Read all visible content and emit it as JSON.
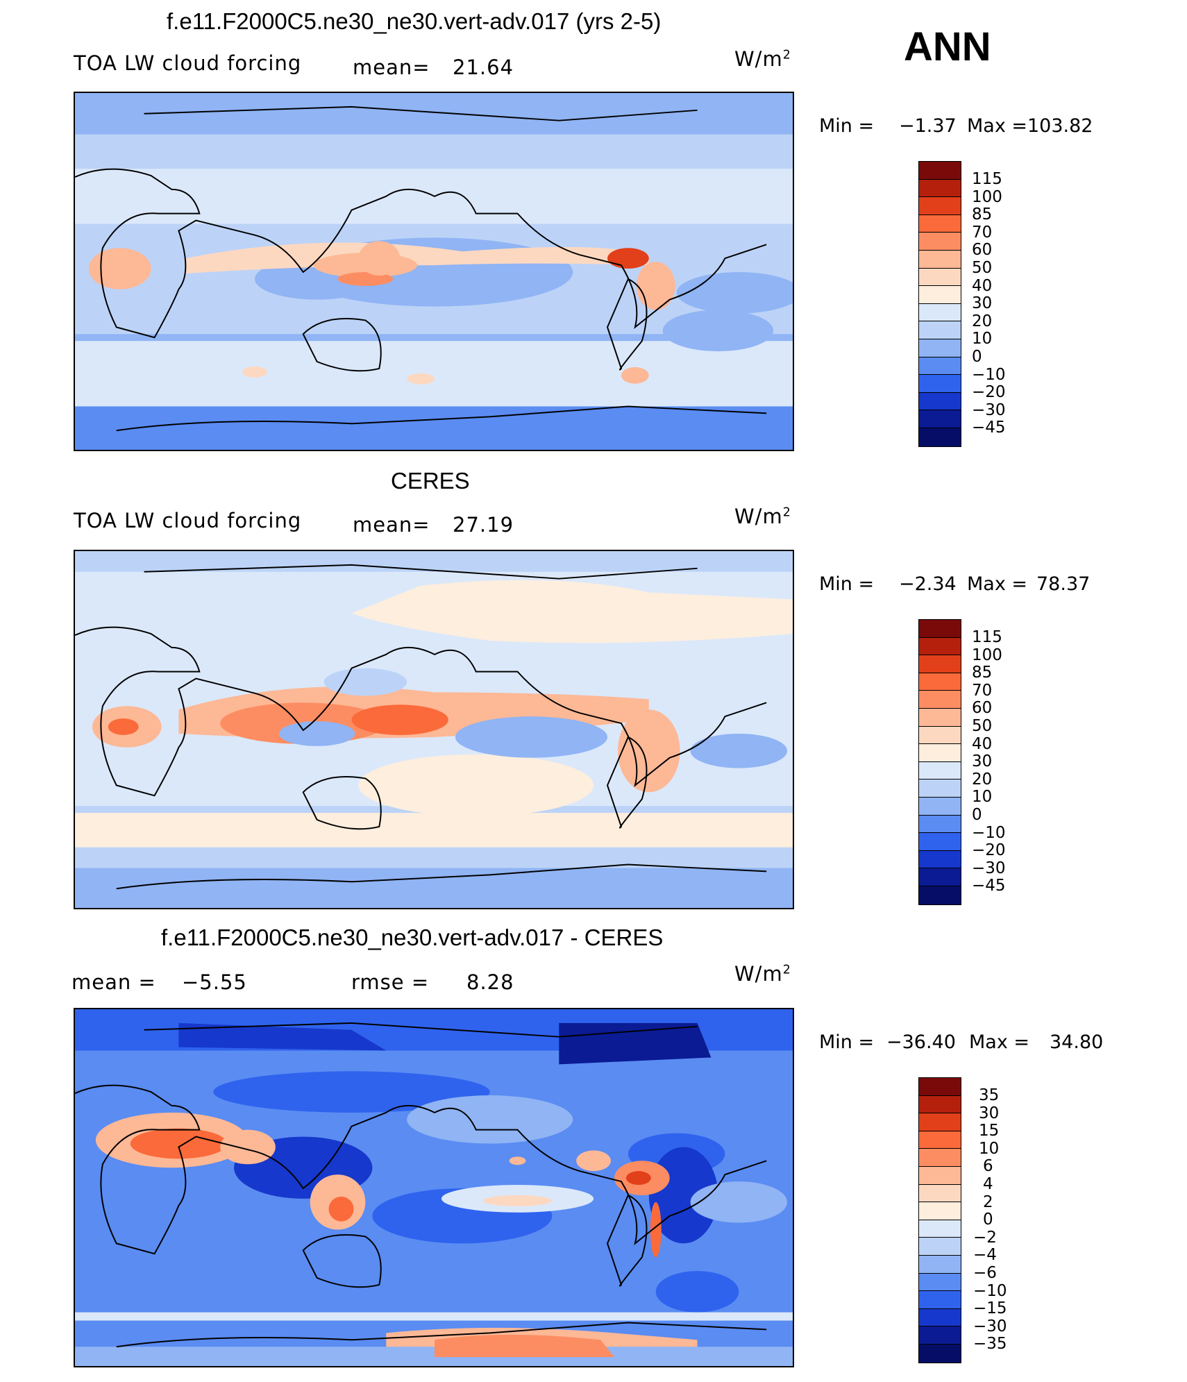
{
  "header": {
    "period_label": "ANN"
  },
  "panels": [
    {
      "title": "f.e11.F2000C5.ne30_ne30.vert-adv.017 (yrs 2-5)",
      "variable": "TOA LW cloud forcing",
      "stat_label": "mean=",
      "stat_value": "21.64",
      "units": "W/m",
      "units_exp": "2",
      "min_label": "Min  =",
      "min_value": "−1.37",
      "max_label": "Max  =",
      "max_value": "103.82",
      "levels": [
        "115",
        "100",
        "85",
        "70",
        "60",
        "50",
        "40",
        "30",
        "20",
        "10",
        "0",
        "−10",
        "−20",
        "−30",
        "−45"
      ]
    },
    {
      "title": "CERES",
      "variable": "TOA LW cloud forcing",
      "stat_label": "mean=",
      "stat_value": "27.19",
      "units": "W/m",
      "units_exp": "2",
      "min_label": "Min  =",
      "min_value": "−2.34",
      "max_label": "Max  =",
      "max_value": "78.37",
      "levels": [
        "115",
        "100",
        "85",
        "70",
        "60",
        "50",
        "40",
        "30",
        "20",
        "10",
        "0",
        "−10",
        "−20",
        "−30",
        "−45"
      ]
    },
    {
      "title": "f.e11.F2000C5.ne30_ne30.vert-adv.017 - CERES",
      "stat1_label": "mean  =",
      "stat1_value": "−5.55",
      "stat2_label": "rmse  =",
      "stat2_value": "8.28",
      "units": "W/m",
      "units_exp": "2",
      "min_label": "Min  =",
      "min_value": "−36.40",
      "max_label": "Max  =",
      "max_value": "34.80",
      "levels": [
        "35",
        "30",
        "15",
        "10",
        "6",
        "4",
        "2",
        "0",
        "−2",
        "−4",
        "−6",
        "−10",
        "−15",
        "−30",
        "−35"
      ]
    }
  ],
  "colors": {
    "scale": [
      "#7a0a0a",
      "#b5200c",
      "#e2401a",
      "#fb6a3a",
      "#fc8d62",
      "#fdb896",
      "#fdd8c0",
      "#fdeede",
      "#dbe8fa",
      "#bcd3f7",
      "#90b4f4",
      "#5a8cf2",
      "#2f63ee",
      "#1638cc",
      "#0a1b94",
      "#060d66"
    ],
    "coastline": "#000000"
  }
}
